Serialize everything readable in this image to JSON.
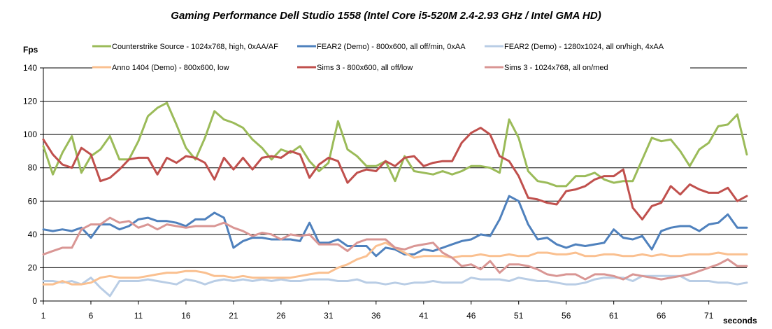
{
  "chart_data": {
    "type": "line",
    "title": "Gaming Performance Dell Studio 1558 (Intel Core i5-520M 2.4-2.93 GHz / Intel GMA HD)",
    "xlabel": "seconds",
    "ylabel": "Fps",
    "ylim": [
      0,
      140
    ],
    "yticks": [
      0,
      20,
      40,
      60,
      80,
      100,
      120,
      140
    ],
    "xlim": [
      1,
      75
    ],
    "xticks": [
      1,
      6,
      11,
      16,
      21,
      26,
      31,
      36,
      41,
      46,
      51,
      56,
      61,
      66,
      71
    ],
    "grid": "horizontal",
    "legend_position": "top",
    "series": [
      {
        "name": "Counterstrike Source - 1024x768,  high, 0xAA/AF",
        "color": "#9bbb59",
        "values": [
          93,
          76,
          89,
          99,
          77,
          87,
          91,
          99,
          85,
          85,
          96,
          111,
          116,
          119,
          106,
          92,
          85,
          98,
          114,
          109,
          107,
          104,
          97,
          92,
          85,
          91,
          89,
          93,
          84,
          78,
          83,
          108,
          91,
          87,
          81,
          81,
          84,
          72,
          87,
          78,
          77,
          76,
          78,
          76,
          78,
          81,
          81,
          80,
          77,
          109,
          98,
          78,
          72,
          71,
          69,
          69,
          75,
          75,
          77,
          73,
          71,
          72,
          72,
          85,
          98,
          96,
          97,
          90,
          81,
          91,
          95,
          105,
          106,
          112,
          88
        ]
      },
      {
        "name": "FEAR2 (Demo) - 800x600,  all off/min, 0xAA",
        "color": "#4f81bd",
        "values": [
          43,
          42,
          43,
          42,
          44,
          38,
          46,
          46,
          43,
          45,
          49,
          50,
          48,
          48,
          47,
          45,
          49,
          49,
          53,
          50,
          32,
          36,
          38,
          38,
          37,
          37,
          37,
          36,
          47,
          35,
          35,
          37,
          33,
          33,
          33,
          27,
          32,
          31,
          28,
          28,
          31,
          30,
          32,
          34,
          36,
          37,
          40,
          39,
          49,
          63,
          60,
          46,
          37,
          38,
          34,
          32,
          34,
          33,
          34,
          35,
          43,
          38,
          37,
          39,
          31,
          42,
          44,
          45,
          45,
          42,
          46,
          47,
          52,
          44,
          44
        ]
      },
      {
        "name": "FEAR2 (Demo) - 1280x1024,  all on/high, 4xAA",
        "color": "#b9cde5",
        "values": [
          12,
          12,
          11,
          12,
          10,
          14,
          8,
          3,
          12,
          12,
          12,
          13,
          12,
          11,
          10,
          13,
          12,
          10,
          12,
          13,
          12,
          13,
          12,
          13,
          12,
          13,
          12,
          12,
          13,
          13,
          13,
          12,
          12,
          13,
          11,
          11,
          10,
          11,
          10,
          11,
          11,
          12,
          11,
          11,
          11,
          14,
          13,
          13,
          13,
          12,
          14,
          13,
          12,
          12,
          11,
          10,
          10,
          11,
          13,
          14,
          14,
          14,
          12,
          15,
          15,
          15,
          15,
          15,
          12,
          12,
          12,
          11,
          11,
          10,
          11
        ]
      },
      {
        "name": "Anno 1404 (Demo) - 800x600,  low",
        "color": "#fac090",
        "values": [
          10,
          10,
          12,
          10,
          10,
          11,
          14,
          15,
          14,
          14,
          14,
          15,
          16,
          17,
          17,
          18,
          18,
          17,
          15,
          15,
          14,
          15,
          14,
          14,
          14,
          14,
          14,
          15,
          16,
          17,
          17,
          20,
          22,
          25,
          27,
          33,
          35,
          32,
          29,
          26,
          27,
          27,
          27,
          26,
          27,
          27,
          28,
          27,
          27,
          28,
          27,
          27,
          29,
          29,
          28,
          28,
          29,
          27,
          27,
          28,
          28,
          27,
          27,
          28,
          27,
          28,
          27,
          27,
          28,
          28,
          28,
          29,
          28,
          28,
          28
        ]
      },
      {
        "name": "Sims 3 - 800x600,  all off/low",
        "color": "#c0504d",
        "values": [
          97,
          88,
          82,
          80,
          92,
          88,
          72,
          74,
          79,
          85,
          86,
          86,
          76,
          86,
          83,
          87,
          86,
          83,
          73,
          86,
          79,
          86,
          79,
          86,
          87,
          86,
          90,
          88,
          74,
          82,
          86,
          84,
          71,
          77,
          79,
          78,
          84,
          81,
          86,
          87,
          81,
          83,
          84,
          84,
          95,
          101,
          104,
          100,
          87,
          84,
          75,
          62,
          61,
          59,
          58,
          66,
          67,
          69,
          73,
          75,
          75,
          79,
          56,
          49,
          57,
          59,
          69,
          64,
          70,
          67,
          65,
          65,
          68,
          60,
          63
        ]
      },
      {
        "name": "Sims 3 - 1024x768,  all on/med",
        "color": "#d99694",
        "values": [
          28,
          30,
          32,
          32,
          43,
          46,
          46,
          50,
          47,
          48,
          44,
          46,
          43,
          46,
          45,
          44,
          45,
          45,
          45,
          47,
          44,
          42,
          39,
          41,
          40,
          37,
          40,
          39,
          40,
          34,
          34,
          34,
          30,
          35,
          37,
          37,
          37,
          32,
          31,
          33,
          34,
          35,
          29,
          26,
          21,
          22,
          19,
          24,
          17,
          22,
          22,
          21,
          19,
          16,
          15,
          16,
          16,
          13,
          16,
          16,
          15,
          13,
          16,
          15,
          14,
          13,
          14,
          15,
          16,
          18,
          20,
          22,
          25,
          21,
          21
        ]
      }
    ]
  }
}
